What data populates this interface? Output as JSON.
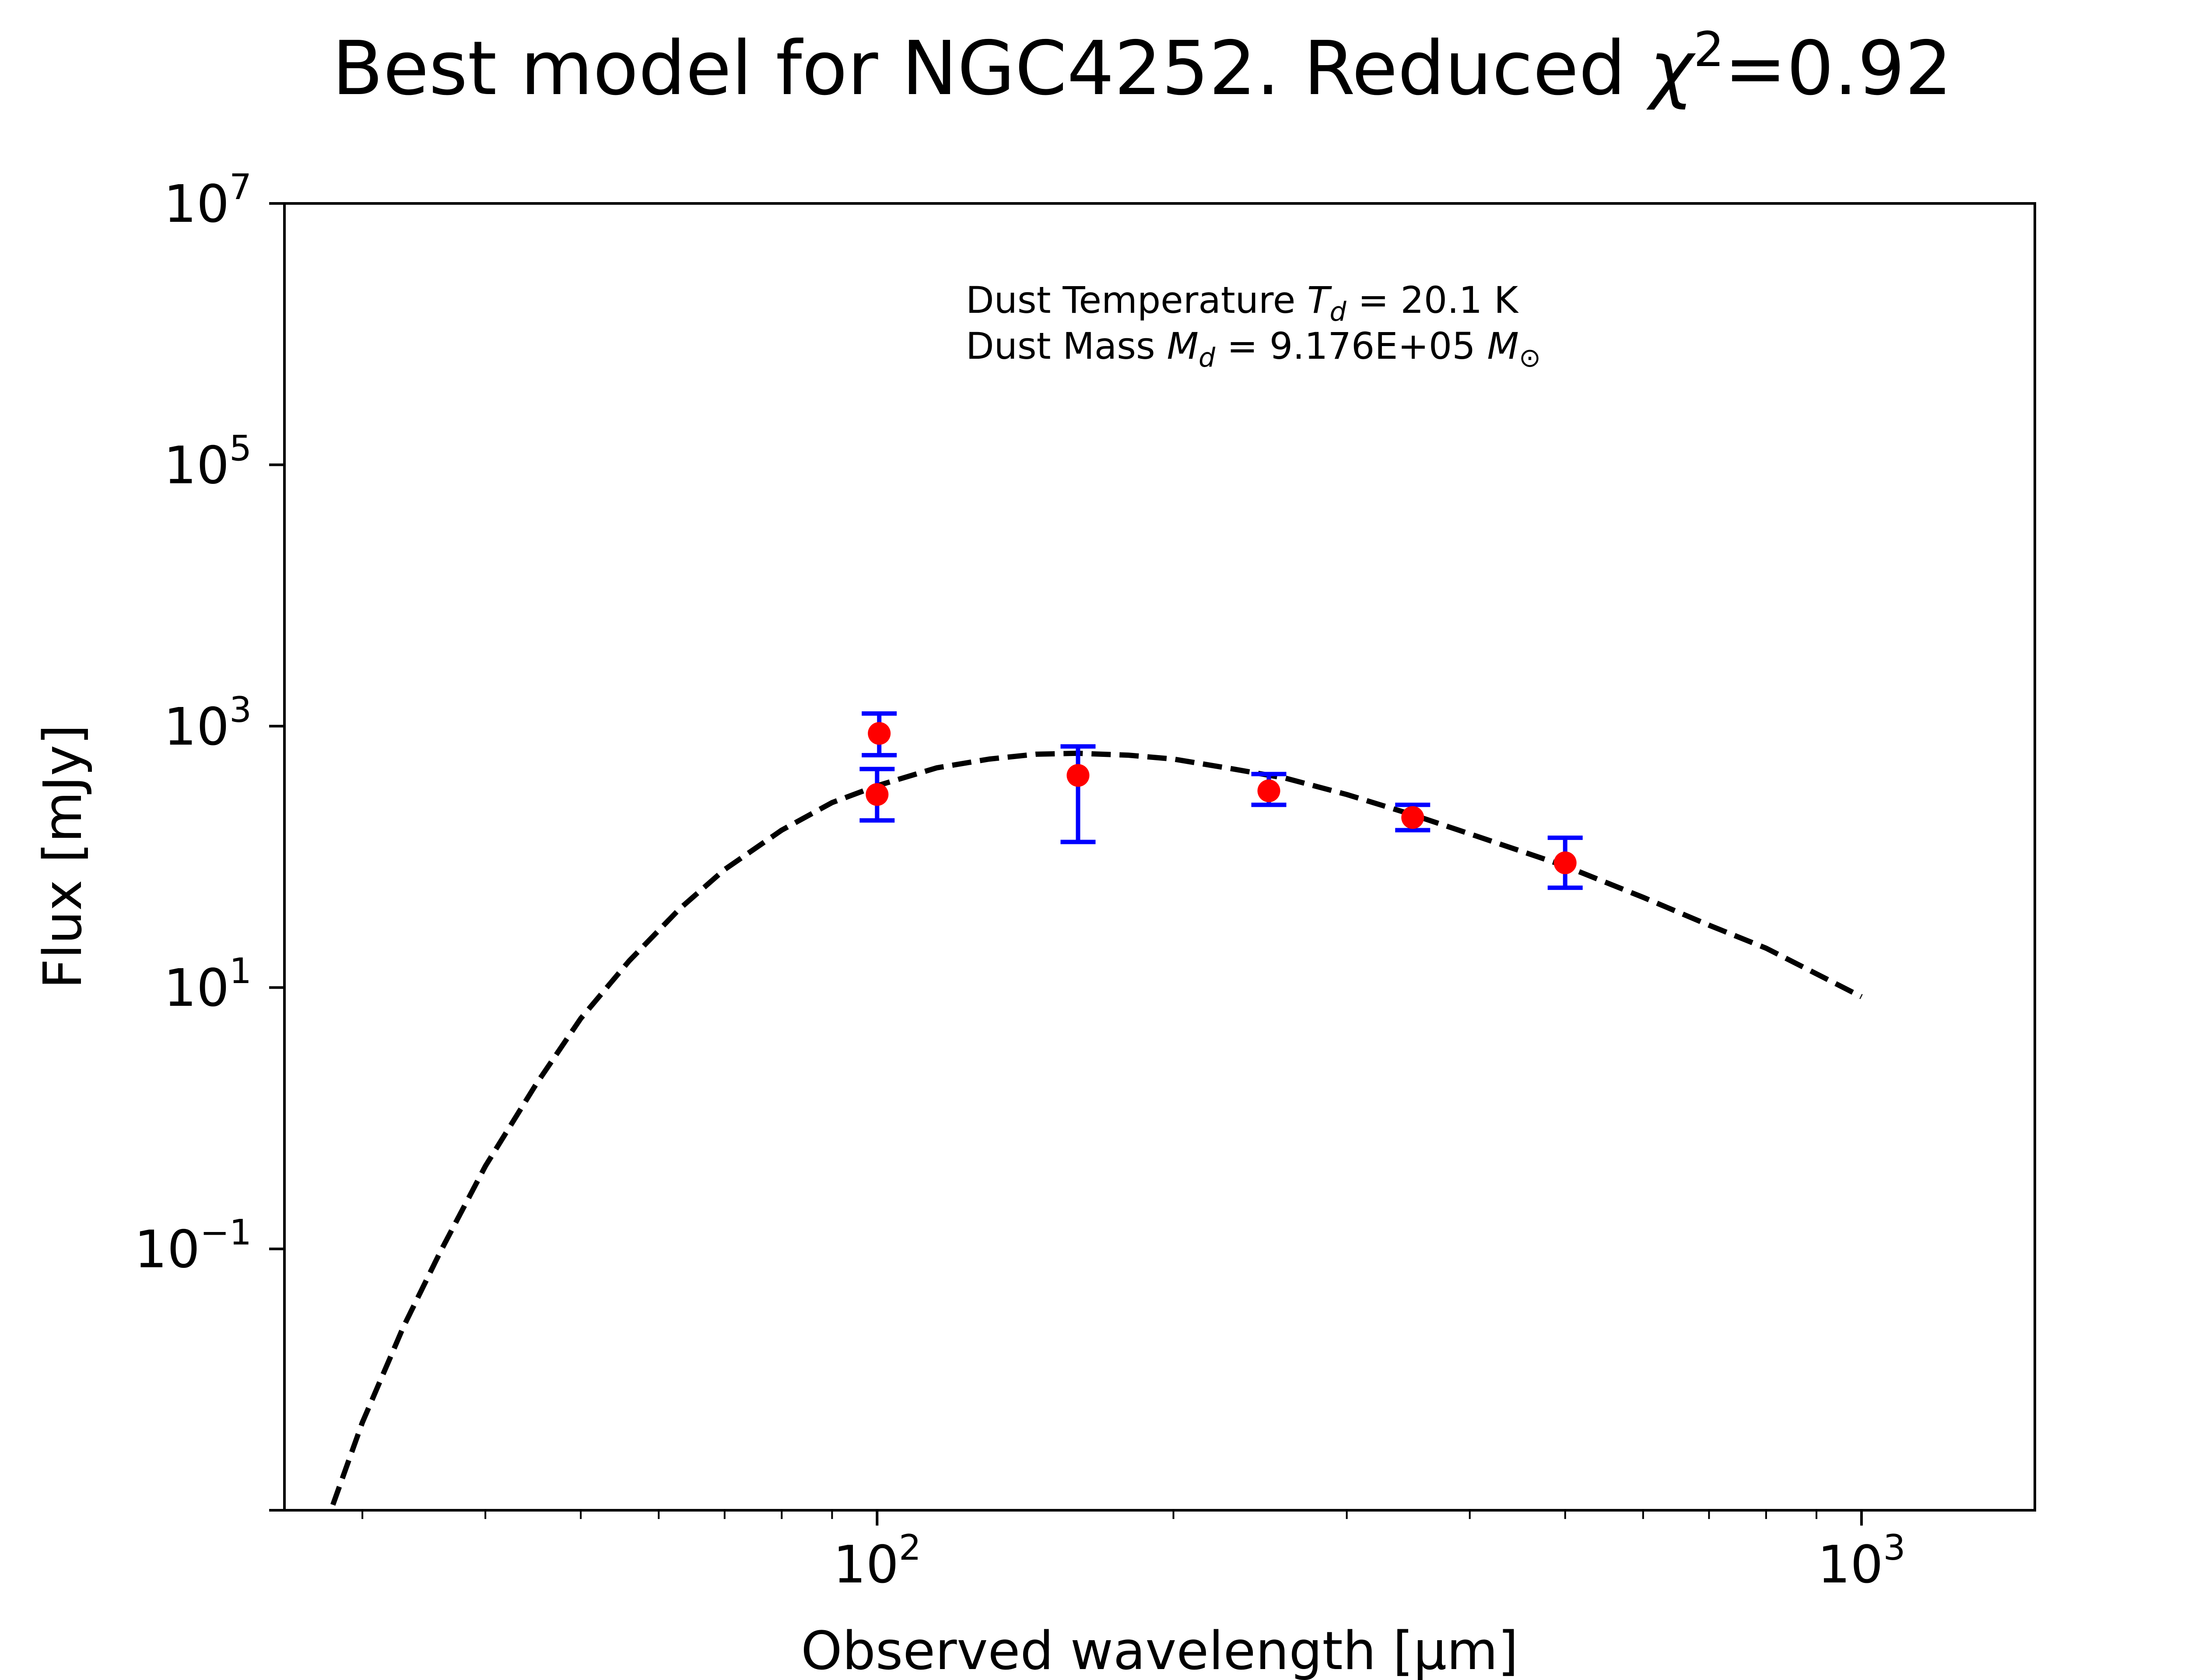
{
  "title": {
    "prefix": "Best model for NGC4252. Reduced ",
    "chi": "χ",
    "sup": "2",
    "suffix": "=0.92"
  },
  "annotations": {
    "temperature": {
      "prefix": "Dust Temperature ",
      "sym": "T",
      "sub": "d",
      "suffix": " = 20.1 K"
    },
    "mass": {
      "prefix": "Dust Mass ",
      "sym": "M",
      "sub": "d",
      "mid": " = 9.176E+05 ",
      "unit_sym": "M",
      "unit_sub": "⊙"
    }
  },
  "colors": {
    "model_line": "#000000",
    "points": "#ff0000",
    "errorbars": "#0000ff"
  },
  "chart_data": {
    "type": "scatter",
    "title": "Best model for NGC4252. Reduced χ²=0.92",
    "xlabel": "Observed wavelength [μm]",
    "ylabel": "Flux [mJy]",
    "xscale": "log",
    "yscale": "log",
    "xlim": [
      25,
      1500
    ],
    "ylim": [
      0.001,
      10000000
    ],
    "xticks": [
      {
        "base": "10",
        "exp": "2",
        "value": 100
      },
      {
        "base": "10",
        "exp": "3",
        "value": 1000
      }
    ],
    "yticks": [
      {
        "base": "10",
        "exp": "7",
        "value": 10000000
      },
      {
        "base": "10",
        "exp": "5",
        "value": 100000
      },
      {
        "base": "10",
        "exp": "3",
        "value": 1000
      },
      {
        "base": "10",
        "exp": "1",
        "value": 10
      },
      {
        "base": "10",
        "exp": "−1",
        "value": 0.1
      }
    ],
    "grid": false,
    "legend": "none",
    "model": {
      "name": "",
      "style": "dashed",
      "x": [
        28,
        30,
        33,
        36,
        40,
        45,
        50,
        56,
        63,
        70,
        80,
        90,
        100,
        115,
        130,
        145,
        160,
        180,
        200,
        230,
        260,
        300,
        350,
        400,
        500,
        600,
        700,
        800,
        1000
      ],
      "y": [
        0.0011,
        0.0047,
        0.025,
        0.095,
        0.43,
        1.8,
        5.8,
        16,
        40,
        80,
        160,
        260,
        350,
        480,
        560,
        610,
        620,
        600,
        560,
        470,
        400,
        300,
        210,
        150,
        85,
        49,
        30,
        20,
        8.5
      ]
    },
    "points": {
      "name": "",
      "x": [
        100,
        100.5,
        160,
        250,
        350,
        500
      ],
      "y": [
        300,
        880,
        420,
        320,
        200,
        90
      ],
      "yerr_low": [
        190,
        600,
        130,
        250,
        160,
        58
      ],
      "yerr_high": [
        470,
        1250,
        700,
        430,
        250,
        140
      ]
    }
  }
}
